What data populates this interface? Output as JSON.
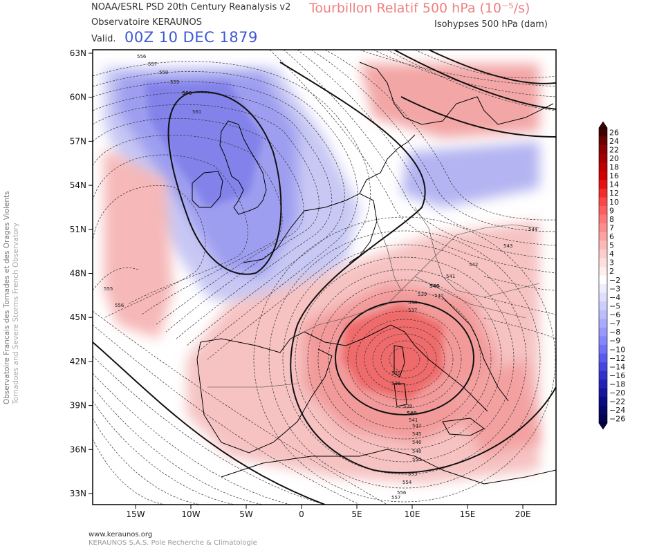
{
  "header": {
    "source_line": "NOAA/ESRL PSD 20th Century Reanalysis v2",
    "product": "Tourbillon Relatif 500 hPa (10⁻⁵/s)",
    "observatory": "Observatoire KERAUNOS",
    "contours": "Isohypses 500 hPa (dam)",
    "valid_prefix": "Valid.",
    "valid_date": "00Z 10 DEC 1879"
  },
  "side": {
    "line1": "Observatoire Francais des Tornades et des Orages Violents",
    "line2": "Tornadoes and Severe Storms French Observatory"
  },
  "footer": {
    "url": "www.keraunos.org",
    "org": "KERAUNOS S.A.S. Pole Recherche & Climatologie"
  },
  "map": {
    "lat_labels": [
      "63N",
      "60N",
      "57N",
      "54N",
      "51N",
      "48N",
      "45N",
      "42N",
      "39N",
      "36N",
      "33N"
    ],
    "lon_labels": [
      "15W",
      "10W",
      "5W",
      "0",
      "5E",
      "10E",
      "15E",
      "20E"
    ],
    "contour_labels": {
      "trough_center": "560",
      "trough_inner": "561",
      "n1": "556",
      "n2": "557",
      "n3": "558",
      "n4": "559",
      "w1": "555",
      "w2": "556",
      "low_center": "540",
      "low_a": "539",
      "low_b": "538",
      "low_c": "537",
      "low_d": "535",
      "low_e": "536",
      "low_f": "539",
      "low_g": "540",
      "low_h": "541",
      "low_i": "542",
      "low_j": "545",
      "low_k": "546",
      "low_l": "548",
      "low_m": "550",
      "low_n": "553",
      "low_o": "554",
      "low_p": "556",
      "low_q": "557",
      "ne1": "540",
      "ne2": "541",
      "ne3": "542",
      "ne4": "543",
      "ne5": "544"
    }
  },
  "colorbar": {
    "labels": [
      "26",
      "24",
      "22",
      "20",
      "18",
      "16",
      "14",
      "12",
      "10",
      "9",
      "8",
      "7",
      "6",
      "5",
      "4",
      "3",
      "2",
      "−2",
      "−3",
      "−4",
      "−5",
      "−6",
      "−7",
      "−8",
      "−9",
      "−10",
      "−12",
      "−14",
      "−16",
      "−18",
      "−20",
      "−22",
      "−24",
      "−26"
    ],
    "colors": [
      "#3f0000",
      "#6a0000",
      "#8b0000",
      "#a30000",
      "#bd0000",
      "#d40000",
      "#e81010",
      "#f52a2a",
      "#ff4646",
      "#ff5e5e",
      "#ff7676",
      "#ff8c8c",
      "#ffa2a2",
      "#ffb8b8",
      "#ffcccc",
      "#ffdede",
      "#ffeeee",
      "#ffffff",
      "#eeeeff",
      "#dedeff",
      "#cdcdff",
      "#bcbcff",
      "#aaaaff",
      "#9898ff",
      "#8585ff",
      "#7070fb",
      "#5a5aee",
      "#4545e0",
      "#3232cf",
      "#2222b8",
      "#14149f",
      "#0a0a85",
      "#05056a",
      "#020250"
    ]
  }
}
